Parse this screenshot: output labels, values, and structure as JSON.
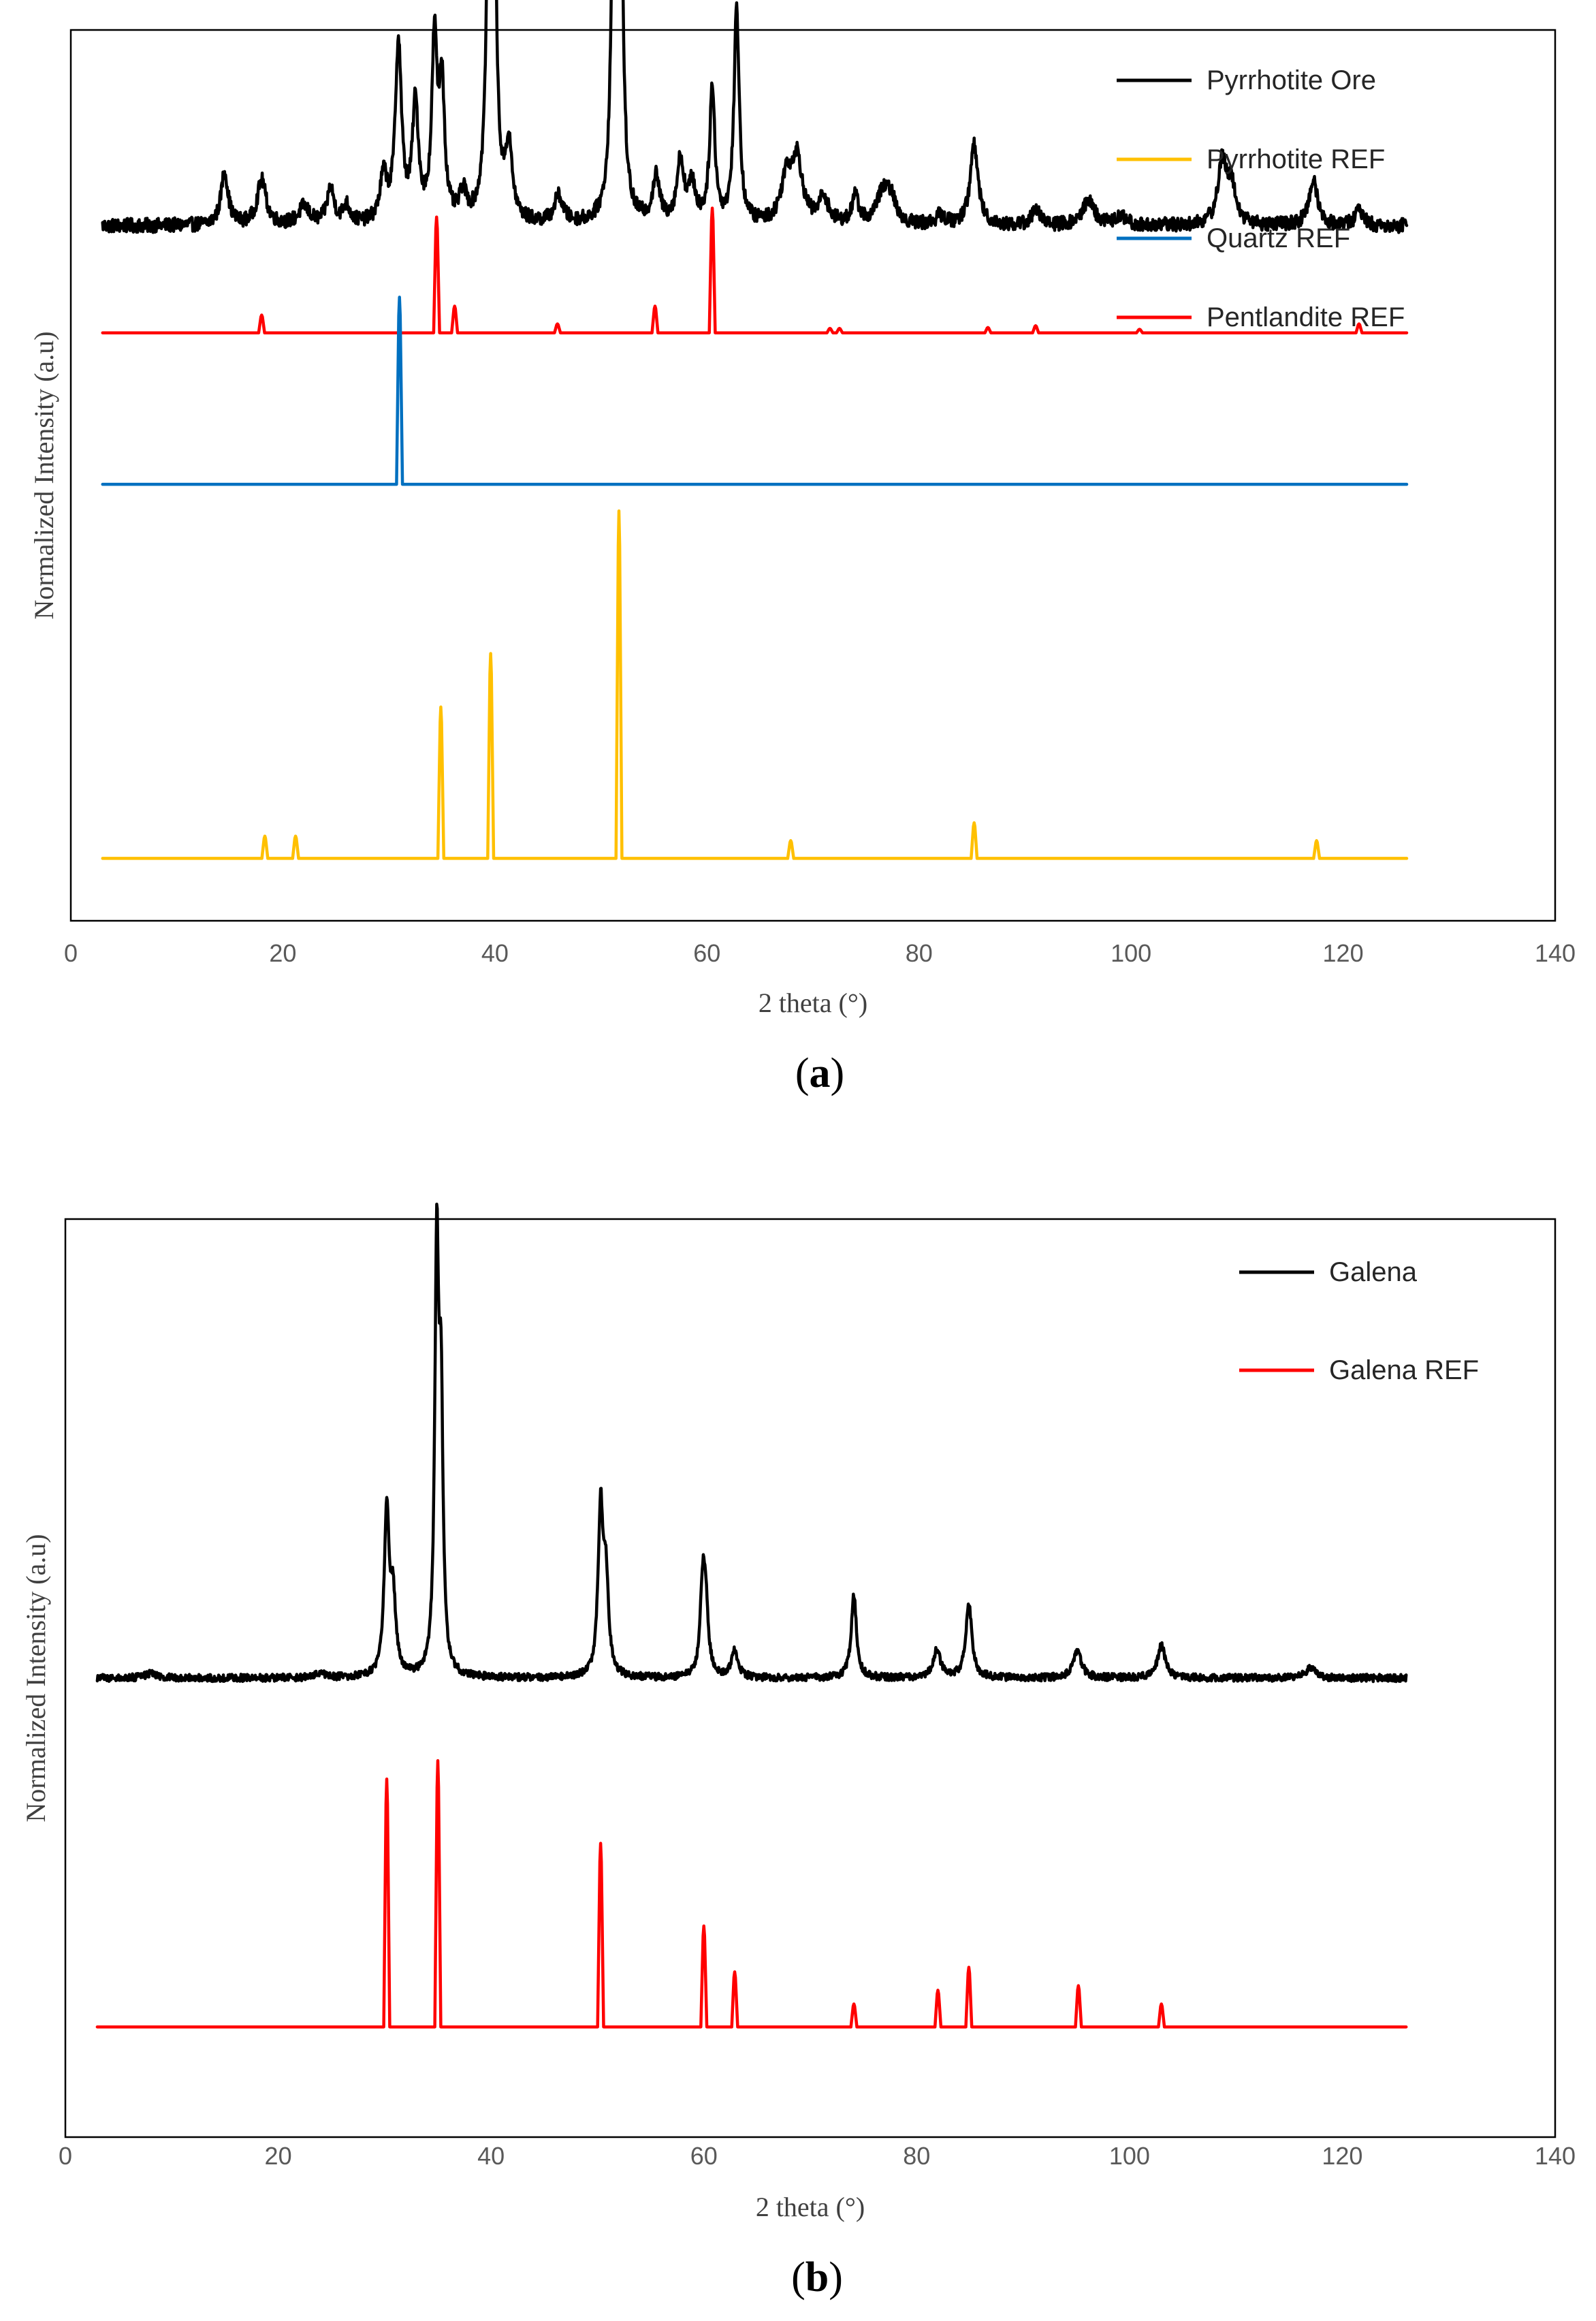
{
  "chart_data": [
    {
      "type": "line",
      "panel": "a",
      "caption_open": "(",
      "caption_letter": "a",
      "caption_close": ")",
      "xlabel": "2 theta (°)",
      "ylabel": "Normalized Intensity (a.u)",
      "xlim": [
        0,
        140
      ],
      "xticks": [
        "0",
        "20",
        "40",
        "60",
        "80",
        "100",
        "120",
        "140"
      ],
      "x_range": [
        3,
        126
      ],
      "legend_position": "top-right",
      "grid": false,
      "series": [
        {
          "name": "Pyrrhotite Ore",
          "color": "#000000",
          "kind": "pattern",
          "baseline": 0.78,
          "noise": 0.008,
          "peaks": [
            [
              14.5,
              0.06,
              0.4
            ],
            [
              18,
              0.05,
              0.5
            ],
            [
              22,
              0.02,
              0.6
            ],
            [
              24.5,
              0.04,
              0.4
            ],
            [
              26,
              0.02,
              0.4
            ],
            [
              29.5,
              0.05,
              0.4
            ],
            [
              30.9,
              0.2,
              0.35
            ],
            [
              32.5,
              0.13,
              0.35
            ],
            [
              34.3,
              0.2,
              0.3
            ],
            [
              35,
              0.15,
              0.3
            ],
            [
              37,
              0.03,
              0.4
            ],
            [
              39.5,
              0.42,
              0.3
            ],
            [
              39.9,
              0.34,
              0.25
            ],
            [
              41.3,
              0.08,
              0.4
            ],
            [
              46,
              0.03,
              0.5
            ],
            [
              51.3,
              0.6,
              0.25
            ],
            [
              51.8,
              0.46,
              0.25
            ],
            [
              55.2,
              0.05,
              0.4
            ],
            [
              57.5,
              0.07,
              0.4
            ],
            [
              58.6,
              0.04,
              0.4
            ],
            [
              60.5,
              0.15,
              0.3
            ],
            [
              62.8,
              0.24,
              0.3
            ],
            [
              67.5,
              0.05,
              0.6
            ],
            [
              68.5,
              0.07,
              0.6
            ],
            [
              71,
              0.03,
              0.5
            ],
            [
              74,
              0.03,
              0.4
            ],
            [
              76.5,
              0.03,
              0.6
            ],
            [
              77.3,
              0.03,
              0.6
            ],
            [
              82,
              0.01,
              0.5
            ],
            [
              85.2,
              0.09,
              0.45
            ],
            [
              91,
              0.02,
              0.4
            ],
            [
              96,
              0.03,
              0.6
            ],
            [
              99,
              0.01,
              0.6
            ],
            [
              108.6,
              0.07,
              0.5
            ],
            [
              109.5,
              0.04,
              0.5
            ],
            [
              117.2,
              0.05,
              0.5
            ],
            [
              121.5,
              0.02,
              0.4
            ]
          ]
        },
        {
          "name": "Pyrrhotite REF",
          "color": "#FFC000",
          "kind": "sticks",
          "baseline": 0.07,
          "peaks": [
            [
              18.3,
              0.025
            ],
            [
              21.2,
              0.025
            ],
            [
              34.9,
              0.17
            ],
            [
              39.6,
              0.23
            ],
            [
              51.7,
              0.39
            ],
            [
              67.9,
              0.02
            ],
            [
              85.2,
              0.04
            ],
            [
              117.5,
              0.02
            ]
          ]
        },
        {
          "name": "Quartz REF",
          "color": "#0070C0",
          "kind": "sticks",
          "baseline": 0.49,
          "peaks": [
            [
              31,
              0.21
            ]
          ]
        },
        {
          "name": "Pentlandite REF",
          "color": "#FF0000",
          "kind": "sticks",
          "baseline": 0.66,
          "peaks": [
            [
              18,
              0.02
            ],
            [
              34.5,
              0.13
            ],
            [
              36.2,
              0.03
            ],
            [
              45.9,
              0.01
            ],
            [
              55.1,
              0.03
            ],
            [
              60.5,
              0.14
            ],
            [
              71.6,
              0.005
            ],
            [
              72.5,
              0.005
            ],
            [
              86.5,
              0.006
            ],
            [
              91,
              0.008
            ],
            [
              100.8,
              0.004
            ],
            [
              121.5,
              0.01
            ]
          ]
        }
      ]
    },
    {
      "type": "line",
      "panel": "b",
      "caption_open": "(",
      "caption_letter": "b",
      "caption_close": ")",
      "xlabel": "2 theta (°)",
      "ylabel": "Normalized Intensity (a.u)",
      "xlim": [
        0,
        140
      ],
      "xticks": [
        "0",
        "20",
        "40",
        "60",
        "80",
        "100",
        "120",
        "140"
      ],
      "x_range": [
        3,
        126
      ],
      "legend_position": "top-right",
      "grid": false,
      "series": [
        {
          "name": "Galena",
          "color": "#000000",
          "kind": "pattern",
          "baseline": 0.5,
          "noise": 0.004,
          "peaks": [
            [
              8,
              0.005,
              0.6
            ],
            [
              24,
              0.006,
              0.5
            ],
            [
              30.2,
              0.18,
              0.28
            ],
            [
              30.8,
              0.08,
              0.3
            ],
            [
              34.9,
              0.45,
              0.22
            ],
            [
              35.3,
              0.28,
              0.22
            ],
            [
              50.3,
              0.18,
              0.28
            ],
            [
              50.8,
              0.1,
              0.28
            ],
            [
              59.9,
              0.1,
              0.28
            ],
            [
              60.2,
              0.06,
              0.28
            ],
            [
              62.9,
              0.03,
              0.35
            ],
            [
              74.1,
              0.09,
              0.3
            ],
            [
              81.9,
              0.03,
              0.4
            ],
            [
              84.9,
              0.08,
              0.35
            ],
            [
              95.1,
              0.03,
              0.45
            ],
            [
              103,
              0.035,
              0.45
            ],
            [
              117,
              0.012,
              0.5
            ]
          ]
        },
        {
          "name": "Galena REF",
          "color": "#FF0000",
          "kind": "sticks",
          "baseline": 0.12,
          "peaks": [
            [
              30.2,
              0.27
            ],
            [
              35,
              0.29
            ],
            [
              50.3,
              0.2
            ],
            [
              60,
              0.11
            ],
            [
              62.9,
              0.06
            ],
            [
              74.1,
              0.025
            ],
            [
              82,
              0.04
            ],
            [
              84.9,
              0.065
            ],
            [
              95.2,
              0.045
            ],
            [
              103,
              0.025
            ]
          ]
        }
      ]
    }
  ]
}
